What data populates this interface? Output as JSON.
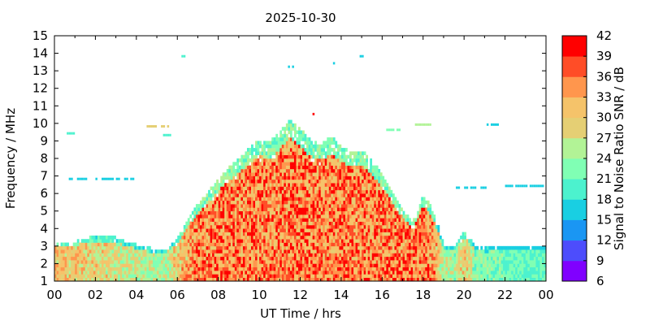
{
  "chart_data": {
    "type": "heatmap",
    "title": "2025-10-30",
    "xlabel": "UT Time / hrs",
    "ylabel": "Frequency / MHz",
    "colorbar_label": "Signal to Noise Ratio SNR / dB",
    "xlim": [
      0,
      24
    ],
    "ylim": [
      1,
      15
    ],
    "x_ticks": [
      "00",
      "02",
      "04",
      "06",
      "08",
      "10",
      "12",
      "14",
      "16",
      "18",
      "20",
      "22",
      "00"
    ],
    "y_ticks": [
      "1",
      "2",
      "3",
      "4",
      "5",
      "6",
      "7",
      "8",
      "9",
      "10",
      "11",
      "12",
      "13",
      "14",
      "15"
    ],
    "colorbar_range": [
      6,
      42
    ],
    "colorbar_ticks": [
      "6",
      "9",
      "12",
      "15",
      "18",
      "21",
      "24",
      "27",
      "30",
      "33",
      "36",
      "39",
      "42"
    ],
    "colorbar_colors": [
      "#8000ff",
      "#4d4dfc",
      "#1a96f3",
      "#19cfe2",
      "#4cf2ce",
      "#80ffb4",
      "#b2f396",
      "#e5cf74",
      "#f5c36a",
      "#ff964d",
      "#ff4d27",
      "#ff0000"
    ],
    "grid": false,
    "heatmap_envelope": {
      "time_hrs": [
        0,
        1,
        2,
        3,
        4,
        5,
        5.5,
        6,
        6.5,
        7,
        7.5,
        8,
        8.5,
        9,
        9.5,
        10,
        10.5,
        11,
        11.5,
        12,
        12.5,
        13,
        13.5,
        14,
        14.5,
        15,
        15.5,
        16,
        16.5,
        17,
        17.5,
        18,
        18.5,
        19,
        19.5,
        20,
        20.5,
        21,
        22,
        23,
        24
      ],
      "max_freq_mhz": [
        3.2,
        3.2,
        3.5,
        3.4,
        3.0,
        2.7,
        2.8,
        3.3,
        4.4,
        5.3,
        6.0,
        6.7,
        7.4,
        7.9,
        8.5,
        9.0,
        8.9,
        9.4,
        10.2,
        9.6,
        9.0,
        8.7,
        9.2,
        8.6,
        8.3,
        8.4,
        7.8,
        7.0,
        6.0,
        5.0,
        4.3,
        5.8,
        5.0,
        3.0,
        2.8,
        3.8,
        3.0,
        2.8,
        2.9,
        2.9,
        2.9
      ],
      "peak_snr_db": [
        36,
        36,
        34,
        33,
        30,
        28,
        30,
        36,
        39,
        42,
        42,
        42,
        42,
        42,
        42,
        42,
        42,
        42,
        42,
        42,
        42,
        42,
        42,
        42,
        42,
        42,
        42,
        42,
        42,
        42,
        42,
        42,
        39,
        30,
        27,
        36,
        27,
        27,
        24,
        24,
        24
      ]
    },
    "sparse_echoes": [
      {
        "time_hrs": [
          0.6,
          1.0
        ],
        "freq_mhz": 9.4,
        "snr_db": 18
      },
      {
        "time_hrs": [
          0.7,
          3.9
        ],
        "freq_mhz": 6.8,
        "snr_db": 15
      },
      {
        "time_hrs": [
          4.5,
          5.5
        ],
        "freq_mhz": 9.8,
        "snr_db": 27
      },
      {
        "time_hrs": [
          5.3,
          5.6
        ],
        "freq_mhz": 9.3,
        "snr_db": 18
      },
      {
        "time_hrs": [
          6.2,
          6.3
        ],
        "freq_mhz": 13.8,
        "snr_db": 18
      },
      {
        "time_hrs": [
          11.4,
          11.6
        ],
        "freq_mhz": 13.2,
        "snr_db": 15
      },
      {
        "time_hrs": [
          12.6,
          12.7
        ],
        "freq_mhz": 10.5,
        "snr_db": 39
      },
      {
        "time_hrs": [
          13.5,
          13.6
        ],
        "freq_mhz": 13.4,
        "snr_db": 15
      },
      {
        "time_hrs": [
          14.9,
          15.0
        ],
        "freq_mhz": 13.8,
        "snr_db": 15
      },
      {
        "time_hrs": [
          16.0,
          17.0
        ],
        "freq_mhz": 9.6,
        "snr_db": 21
      },
      {
        "time_hrs": [
          17.6,
          18.4
        ],
        "freq_mhz": 9.9,
        "snr_db": 24
      },
      {
        "time_hrs": [
          19.5,
          21.1
        ],
        "freq_mhz": 6.3,
        "snr_db": 15
      },
      {
        "time_hrs": [
          21.0,
          21.8
        ],
        "freq_mhz": 9.9,
        "snr_db": 15
      },
      {
        "time_hrs": [
          22.0,
          24.0
        ],
        "freq_mhz": 6.4,
        "snr_db": 15
      }
    ]
  }
}
